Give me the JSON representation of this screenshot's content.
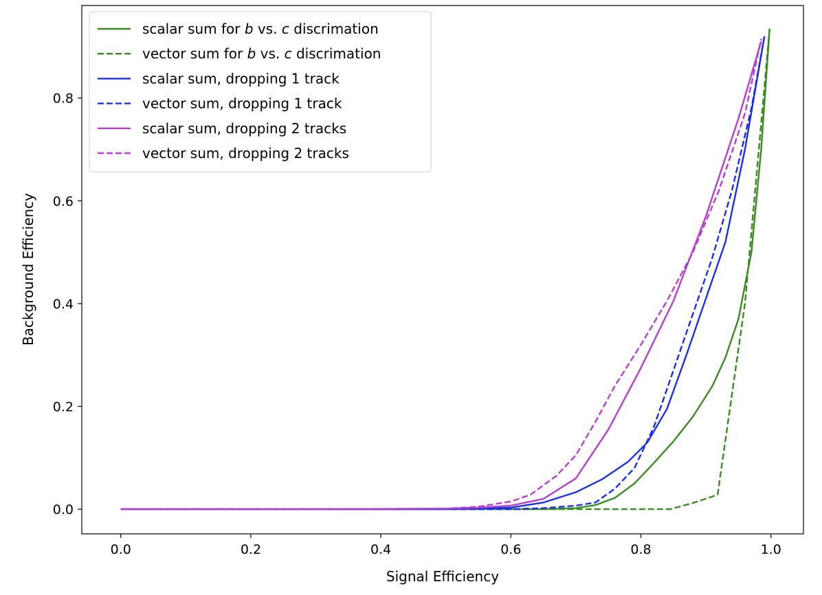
{
  "chart_data": {
    "type": "line",
    "title": "",
    "xlabel": "Signal Efficiency",
    "ylabel": "Background Efficiency",
    "xlim": [
      -0.06,
      1.05
    ],
    "ylim": [
      -0.048,
      0.98
    ],
    "x_ticks": [
      0.0,
      0.2,
      0.4,
      0.6,
      0.8,
      1.0
    ],
    "x_tick_labels": [
      "0.0",
      "0.2",
      "0.4",
      "0.6",
      "0.8",
      "1.0"
    ],
    "y_ticks": [
      0.0,
      0.2,
      0.4,
      0.6,
      0.8
    ],
    "y_tick_labels": [
      "0.0",
      "0.2",
      "0.4",
      "0.6",
      "0.8"
    ],
    "grid": false,
    "legend_position": "top-left",
    "series": [
      {
        "name": "scalar sum for b vs. c discrimation",
        "legend_parts": [
          {
            "text": "scalar sum for ",
            "italic": false
          },
          {
            "text": "b",
            "italic": true
          },
          {
            "text": " vs. ",
            "italic": false
          },
          {
            "text": "c",
            "italic": true
          },
          {
            "text": " discrimation",
            "italic": false
          }
        ],
        "color": "#3a8a22",
        "dash": "solid",
        "x": [
          0.0,
          0.3,
          0.5,
          0.6,
          0.65,
          0.7,
          0.73,
          0.76,
          0.79,
          0.82,
          0.85,
          0.88,
          0.91,
          0.93,
          0.95,
          0.97,
          0.985,
          0.998
        ],
        "y": [
          0.0,
          0.0,
          0.0,
          0.0,
          0.0,
          0.002,
          0.008,
          0.022,
          0.05,
          0.09,
          0.132,
          0.18,
          0.24,
          0.295,
          0.37,
          0.5,
          0.7,
          0.935
        ]
      },
      {
        "name": "vector sum for b vs. c discrimation",
        "legend_parts": [
          {
            "text": "vector sum for ",
            "italic": false
          },
          {
            "text": "b",
            "italic": true
          },
          {
            "text": " vs. ",
            "italic": false
          },
          {
            "text": "c",
            "italic": true
          },
          {
            "text": " discrimation",
            "italic": false
          }
        ],
        "color": "#3a8a22",
        "dash": "dashed",
        "x": [
          0.0,
          0.3,
          0.5,
          0.6,
          0.7,
          0.8,
          0.845,
          0.88,
          0.918,
          0.96,
          0.98,
          0.998
        ],
        "y": [
          0.0,
          0.0,
          0.0,
          0.0,
          0.0,
          0.0,
          0.0,
          0.012,
          0.028,
          0.4,
          0.68,
          0.935
        ]
      },
      {
        "name": "scalar sum, dropping 1 track",
        "color": "#1a2ee8",
        "dash": "solid",
        "x": [
          0.0,
          0.3,
          0.5,
          0.6,
          0.65,
          0.7,
          0.74,
          0.78,
          0.81,
          0.84,
          0.87,
          0.9,
          0.93,
          0.96,
          0.99
        ],
        "y": [
          0.0,
          0.0,
          0.0,
          0.003,
          0.013,
          0.033,
          0.058,
          0.092,
          0.13,
          0.195,
          0.3,
          0.41,
          0.52,
          0.7,
          0.92
        ]
      },
      {
        "name": "vector sum, dropping 1 track",
        "color": "#1a2ee8",
        "dash": "dashed",
        "x": [
          0.0,
          0.3,
          0.5,
          0.6,
          0.65,
          0.7,
          0.73,
          0.76,
          0.79,
          0.82,
          0.85,
          0.88,
          0.91,
          0.94,
          0.97,
          0.99
        ],
        "y": [
          0.0,
          0.0,
          0.0,
          0.0,
          0.002,
          0.007,
          0.013,
          0.04,
          0.08,
          0.16,
          0.27,
          0.38,
          0.49,
          0.62,
          0.78,
          0.92
        ]
      },
      {
        "name": "scalar sum, dropping 2 tracks",
        "color": "#b53ed0",
        "dash": "solid",
        "x": [
          0.0,
          0.3,
          0.5,
          0.55,
          0.6,
          0.65,
          0.7,
          0.75,
          0.8,
          0.85,
          0.9,
          0.95,
          0.985
        ],
        "y": [
          0.0,
          0.0,
          0.001,
          0.003,
          0.007,
          0.02,
          0.06,
          0.155,
          0.275,
          0.405,
          0.57,
          0.76,
          0.91
        ]
      },
      {
        "name": "vector sum, dropping 2 tracks",
        "color": "#b53ed0",
        "dash": "dashed",
        "x": [
          0.0,
          0.3,
          0.5,
          0.55,
          0.6,
          0.63,
          0.67,
          0.7,
          0.73,
          0.76,
          0.8,
          0.84,
          0.88,
          0.92,
          0.96,
          0.985
        ],
        "y": [
          0.0,
          0.0,
          0.001,
          0.005,
          0.015,
          0.028,
          0.065,
          0.105,
          0.17,
          0.24,
          0.32,
          0.405,
          0.5,
          0.62,
          0.77,
          0.915
        ]
      }
    ]
  }
}
